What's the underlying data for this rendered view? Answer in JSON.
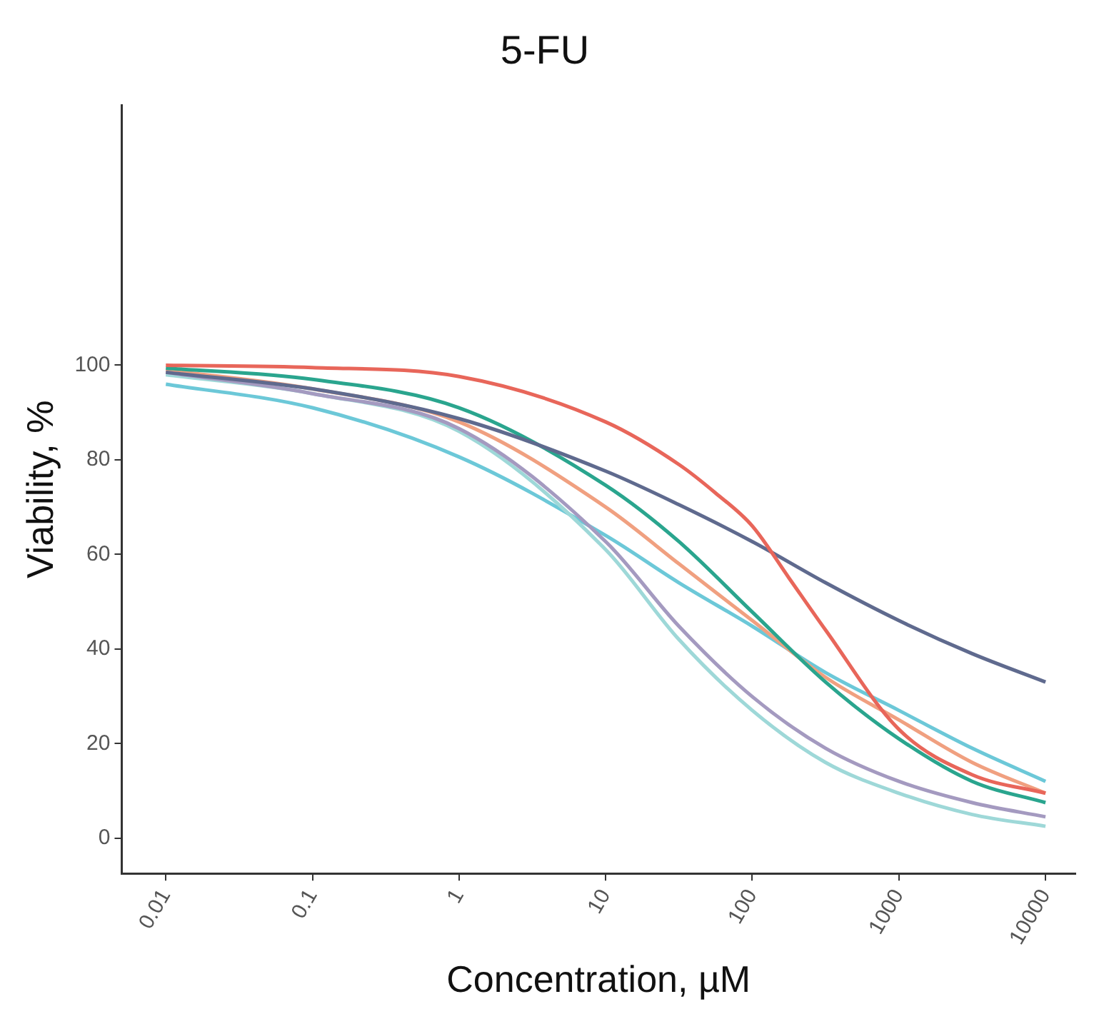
{
  "chart_data": {
    "type": "line",
    "title": "5-FU",
    "xlabel": "Concentration, µM",
    "ylabel": "Viability, %",
    "log": "x",
    "grid": false,
    "legend": false,
    "marker": "none",
    "line_style": "solid",
    "xlim": [
      0.005,
      16000
    ],
    "xticks": [
      0.01,
      0.1,
      1,
      10,
      100,
      1000,
      10000
    ],
    "ylim": [
      -7.5,
      155
    ],
    "yticks": [
      0,
      20,
      40,
      60,
      80,
      100
    ],
    "x": [
      0.01,
      0.1,
      1,
      10,
      31.6,
      100,
      316,
      1000,
      3162,
      10000
    ],
    "series": [
      {
        "color": "#e8665a",
        "x": [
          0.01,
          0.1,
          1,
          10,
          31.6,
          56,
          100,
          178,
          316,
          1000,
          3162,
          10000
        ],
        "values": [
          100,
          99.5,
          97.6,
          88,
          79,
          73,
          66,
          55,
          44,
          23,
          13.4,
          9.5
        ]
      },
      {
        "color": "#5f6a8e",
        "values": [
          98.5,
          95,
          88.7,
          77.6,
          70.5,
          62.7,
          54,
          46,
          39,
          33
        ]
      },
      {
        "color": "#2aa58e",
        "values": [
          99.4,
          97,
          91,
          74.6,
          62.7,
          47.8,
          33,
          21,
          12,
          7.5
        ]
      },
      {
        "color": "#f0a080",
        "values": [
          99,
          95,
          88,
          70,
          58,
          46,
          34,
          25,
          16,
          9.5
        ]
      },
      {
        "color": "#a49ac0",
        "values": [
          98.5,
          94,
          86.6,
          62.7,
          44.8,
          29.9,
          19,
          12,
          7.5,
          4.5
        ]
      },
      {
        "color": "#9ed8d8",
        "values": [
          98,
          94,
          86,
          61,
          42,
          27,
          16,
          9.5,
          5,
          2.5
        ]
      },
      {
        "color": "#6cc8d8",
        "values": [
          96,
          91,
          80.6,
          64,
          54,
          44.8,
          35,
          27,
          19,
          12
        ]
      }
    ]
  }
}
